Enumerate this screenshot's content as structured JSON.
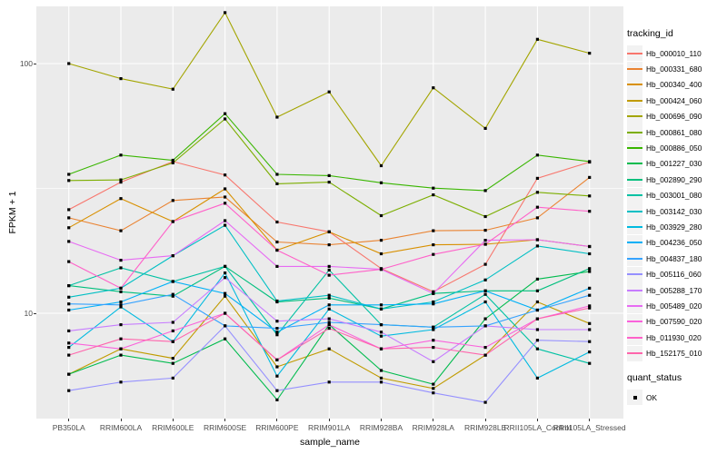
{
  "figure": {
    "y_axis_title": "FPKM + 1",
    "x_axis_title": "sample_name",
    "legend": {
      "tracking_title": "tracking_id",
      "quant_title": "quant_status",
      "quant_items": [
        {
          "label": "OK",
          "marker": "filled-black-square"
        }
      ]
    }
  },
  "chart_data": {
    "type": "line",
    "title": "",
    "xlabel": "sample_name",
    "ylabel": "FPKM + 1",
    "y_scale": "log10",
    "ylim": [
      3.8,
      169
    ],
    "y_major_ticks": [
      {
        "label": "100",
        "value": 100
      },
      {
        "label": "10",
        "value": 10
      }
    ],
    "y_minor_gridlines": [
      31.6
    ],
    "grid": true,
    "legend_position": "right",
    "panel_background": "#EBEBEB",
    "gridline_color": "#FFFFFF",
    "point_shape": "filled-square",
    "point_color": "#000000",
    "quant_status_all": "OK",
    "categories": [
      "PB350LA",
      "RRIM600LA",
      "RRIM600LE",
      "RRIM600SE",
      "RRIM600PE",
      "RRIM901LA",
      "RRIM928BA",
      "RRIM928LA",
      "RRIM928LE",
      "RRII105LA_Control",
      "RRII105LA_Stressed"
    ],
    "series": [
      {
        "name": "Hb_000010_110",
        "color": "#F8766D",
        "values": [
          26,
          33.5,
          40.5,
          35.8,
          23.2,
          21.2,
          15.1,
          12.2,
          15.7,
          34.7,
          40.3
        ]
      },
      {
        "name": "Hb_000331_680",
        "color": "#EA8331",
        "values": [
          24.1,
          21.4,
          28.3,
          29.2,
          19.3,
          18.8,
          19.6,
          21.4,
          21.5,
          24.1,
          35
        ]
      },
      {
        "name": "Hb_000340_400",
        "color": "#D89000",
        "values": [
          22,
          28.8,
          23.3,
          31.5,
          17.9,
          21.2,
          17.3,
          18.8,
          18.9,
          19.7,
          18.5
        ]
      },
      {
        "name": "Hb_000424_060",
        "color": "#C09B00",
        "values": [
          5.7,
          7.2,
          6.6,
          11.7,
          6.1,
          7.2,
          5.5,
          5.0,
          6.8,
          11.1,
          9.1
        ]
      },
      {
        "name": "Hb_000696_090",
        "color": "#A3A500",
        "values": [
          100,
          87,
          79,
          160,
          61,
          77,
          39,
          80,
          55,
          125,
          110
        ]
      },
      {
        "name": "Hb_000861_080",
        "color": "#7CAE00",
        "values": [
          34,
          34.2,
          40,
          60,
          33,
          33.5,
          24.6,
          29.8,
          24.4,
          30.5,
          29.5
        ]
      },
      {
        "name": "Hb_000886_050",
        "color": "#39B600",
        "values": [
          36,
          43,
          41,
          63,
          36,
          35.6,
          33.3,
          31.7,
          31,
          43,
          40.5
        ]
      },
      {
        "name": "Hb_001227_030",
        "color": "#00BB4E",
        "values": [
          5.7,
          6.8,
          6.3,
          7.9,
          4.5,
          9.0,
          5.9,
          5.2,
          9.5,
          13.7,
          14.7
        ]
      },
      {
        "name": "Hb_002890_290",
        "color": "#00BF7D",
        "values": [
          12.9,
          12.2,
          11.7,
          15.4,
          11.1,
          11.5,
          10.4,
          12.0,
          12.3,
          12.3,
          15.1
        ]
      },
      {
        "name": "Hb_003001_080",
        "color": "#00C1A3",
        "values": [
          12.9,
          15.2,
          13.4,
          15.4,
          8.2,
          14.9,
          9.0,
          8.8,
          11.9,
          7.2,
          6.3
        ]
      },
      {
        "name": "Hb_003142_030",
        "color": "#00BFC4",
        "values": [
          11.6,
          12.6,
          17.0,
          22.5,
          11.2,
          11.8,
          10.4,
          11.1,
          13.6,
          18.6,
          17.3
        ]
      },
      {
        "name": "Hb_003929_280",
        "color": "#00BAE0",
        "values": [
          7.3,
          10.6,
          7.7,
          14.5,
          5.6,
          10.4,
          8.1,
          8.6,
          11.1,
          5.5,
          7.0
        ]
      },
      {
        "name": "Hb_004236_050",
        "color": "#00B0F6",
        "values": [
          10.3,
          11.1,
          13.4,
          12.0,
          8.4,
          10.8,
          10.8,
          10.9,
          12.3,
          10.3,
          12.6
        ]
      },
      {
        "name": "Hb_004837_180",
        "color": "#35A2FF",
        "values": [
          10.9,
          10.8,
          11.9,
          8.9,
          8.7,
          9.2,
          9.0,
          8.8,
          8.9,
          10.3,
          11.8
        ]
      },
      {
        "name": "Hb_005116_060",
        "color": "#9590FF",
        "values": [
          4.9,
          5.3,
          5.5,
          8.9,
          4.9,
          5.3,
          5.3,
          4.8,
          4.4,
          7.8,
          7.7
        ]
      },
      {
        "name": "Hb_005288_170",
        "color": "#C77CFF",
        "values": [
          8.5,
          9.0,
          9.2,
          13.9,
          9.3,
          9.5,
          8.4,
          6.4,
          8.9,
          8.6,
          8.6
        ]
      },
      {
        "name": "Hb_005489_020",
        "color": "#E76BF3",
        "values": [
          19.4,
          16.3,
          17.0,
          23.5,
          15.4,
          15.4,
          15.0,
          12.0,
          19.6,
          19.7,
          18.5
        ]
      },
      {
        "name": "Hb_007590_020",
        "color": "#FA62DB",
        "values": [
          7.6,
          7.2,
          8.5,
          10.0,
          6.5,
          9.0,
          7.2,
          7.8,
          7.3,
          9.5,
          10.7
        ]
      },
      {
        "name": "Hb_011930_020",
        "color": "#FF61C9",
        "values": [
          16.1,
          12.6,
          23.3,
          27.6,
          17.9,
          14.2,
          15.0,
          17.2,
          18.9,
          26.6,
          25.6
        ]
      },
      {
        "name": "Hb_152175_010",
        "color": "#FF65AC",
        "values": [
          6.8,
          7.9,
          7.7,
          10.0,
          6.5,
          8.7,
          7.2,
          7.3,
          6.8,
          9.5,
          10.5
        ]
      }
    ]
  }
}
